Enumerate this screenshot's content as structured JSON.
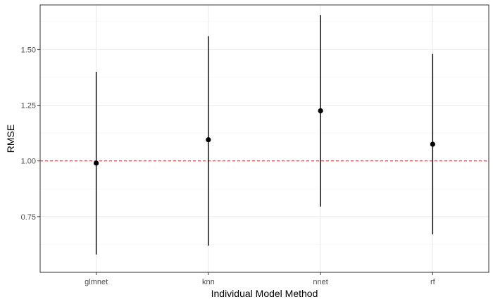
{
  "chart_data": {
    "type": "scatter",
    "title": "",
    "xlabel": "Individual Model Method",
    "ylabel": "RMSE",
    "categories": [
      "glmnet",
      "knn",
      "nnet",
      "rf"
    ],
    "series": [
      {
        "points": [
          {
            "x": "glmnet",
            "y": 0.99,
            "ymin": 0.58,
            "ymax": 1.4
          },
          {
            "x": "knn",
            "y": 1.095,
            "ymin": 0.62,
            "ymax": 1.56
          },
          {
            "x": "nnet",
            "y": 1.225,
            "ymin": 0.795,
            "ymax": 1.655
          },
          {
            "x": "rf",
            "y": 1.075,
            "ymin": 0.67,
            "ymax": 1.48
          }
        ]
      }
    ],
    "reference_line": {
      "y": 1.0,
      "style": "dashed",
      "color": "#d62728"
    },
    "yticks": [
      "0.75",
      "1.00",
      "1.25",
      "1.50"
    ],
    "ylim": [
      0.5,
      1.7
    ],
    "grid": true,
    "legend": "none",
    "colors": {
      "points": "#000000",
      "errorbars": "#000000",
      "grid_major": "#ebebeb",
      "grid_minor": "#f3f3f3",
      "panel_border": "#333333"
    }
  }
}
